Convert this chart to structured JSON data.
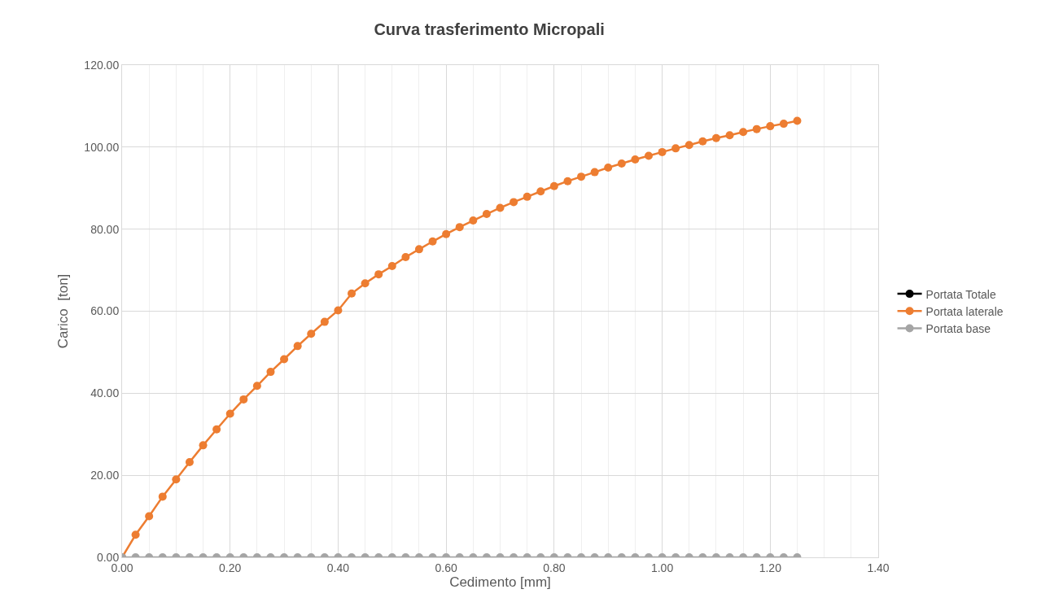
{
  "chart_data": {
    "type": "line",
    "title": "Curva trasferimento Micropali",
    "xlabel": "Cedimento [mm]",
    "ylabel": "Carico  [ton]",
    "x": [
      0,
      0.025,
      0.05,
      0.075,
      0.1,
      0.125,
      0.15,
      0.175,
      0.2,
      0.225,
      0.25,
      0.275,
      0.3,
      0.325,
      0.35,
      0.375,
      0.4,
      0.425,
      0.45,
      0.475,
      0.5,
      0.525,
      0.55,
      0.575,
      0.6,
      0.625,
      0.65,
      0.675,
      0.7,
      0.725,
      0.75,
      0.775,
      0.8,
      0.825,
      0.85,
      0.875,
      0.9,
      0.925,
      0.95,
      0.975,
      1.0,
      1.025,
      1.05,
      1.075,
      1.1,
      1.125,
      1.15,
      1.175,
      1.2,
      1.225,
      1.25
    ],
    "series": [
      {
        "name": "Portata Totale",
        "color": "#000000",
        "values": [
          null,
          null,
          null,
          null,
          null,
          null,
          null,
          null,
          null,
          null,
          null,
          null,
          null,
          null,
          null,
          null,
          null,
          null,
          null,
          null,
          null,
          null,
          null,
          null,
          null,
          null,
          null,
          null,
          null,
          null,
          null,
          null,
          null,
          null,
          null,
          null,
          null,
          null,
          null,
          null,
          null,
          null,
          null,
          null,
          null,
          null,
          null,
          null,
          null,
          null,
          null
        ]
      },
      {
        "name": "Portata laterale",
        "color": "#ed7d31",
        "values": [
          0,
          5.5,
          10,
          14.8,
          19,
          23.2,
          27.3,
          31.2,
          35,
          38.5,
          41.8,
          45.2,
          48.3,
          51.5,
          54.5,
          57.4,
          60.2,
          64.3,
          66.8,
          69,
          71,
          73.2,
          75.1,
          77,
          78.8,
          80.5,
          82.1,
          83.7,
          85.2,
          86.6,
          87.9,
          89.2,
          90.5,
          91.7,
          92.8,
          93.9,
          95,
          96,
          97,
          97.9,
          98.8,
          99.7,
          100.5,
          101.4,
          102.2,
          102.9,
          103.7,
          104.4,
          105.1,
          105.7,
          106.4
        ]
      },
      {
        "name": "Portata base",
        "color": "#a5a5a5",
        "values": [
          0,
          0,
          0,
          0,
          0,
          0,
          0,
          0,
          0,
          0,
          0,
          0,
          0,
          0,
          0,
          0,
          0,
          0,
          0,
          0,
          0,
          0,
          0,
          0,
          0,
          0,
          0,
          0,
          0,
          0,
          0,
          0,
          0,
          0,
          0,
          0,
          0,
          0,
          0,
          0,
          0,
          0,
          0,
          0,
          0,
          0,
          0,
          0,
          0,
          0,
          0
        ]
      }
    ],
    "xlim": [
      0,
      1.4
    ],
    "xticks": [
      {
        "value": 0,
        "label": "0.00"
      },
      {
        "value": 0.2,
        "label": "0.20"
      },
      {
        "value": 0.4,
        "label": "0.40"
      },
      {
        "value": 0.6,
        "label": "0.60"
      },
      {
        "value": 0.8,
        "label": "0.80"
      },
      {
        "value": 1.0,
        "label": "1.00"
      },
      {
        "value": 1.2,
        "label": "1.20"
      },
      {
        "value": 1.4,
        "label": "1.40"
      }
    ],
    "ylim": [
      0,
      120
    ],
    "yticks": [
      {
        "value": 0,
        "label": "0.00"
      },
      {
        "value": 20,
        "label": "20.00"
      },
      {
        "value": 40,
        "label": "40.00"
      },
      {
        "value": 60,
        "label": "60.00"
      },
      {
        "value": 80,
        "label": "80.00"
      },
      {
        "value": 100,
        "label": "100.00"
      },
      {
        "value": 120,
        "label": "120.00"
      }
    ],
    "grid": true,
    "legend": "right",
    "marker": "circle",
    "line_style": "solid"
  }
}
